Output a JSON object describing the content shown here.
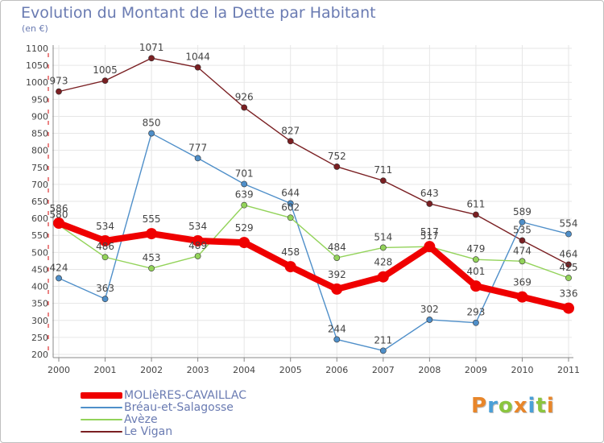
{
  "header": {
    "title": "Evolution du Montant de la Dette par Habitant",
    "unit": "(en €)"
  },
  "logo": {
    "letters": [
      "P",
      "r",
      "o",
      "x",
      "i",
      "t",
      "i"
    ],
    "colors": [
      "#e8862a",
      "#4aa0d8",
      "#8bc53f",
      "#e8862a",
      "#4aa0d8",
      "#8bc53f",
      "#e8862a"
    ]
  },
  "chart_data": {
    "type": "line",
    "title": "Evolution du Montant de la Dette par Habitant",
    "ylabel": "(en €)",
    "xlabel": "",
    "x": [
      "2000",
      "2001",
      "2002",
      "2003",
      "2004",
      "2005",
      "2006",
      "2007",
      "2008",
      "2009",
      "2010",
      "2011"
    ],
    "y_ticks": [
      200,
      250,
      300,
      350,
      400,
      450,
      500,
      550,
      600,
      650,
      700,
      750,
      800,
      850,
      900,
      950,
      1000,
      1050,
      1100
    ],
    "ylim": [
      200,
      1100
    ],
    "grid": true,
    "legend_position": "bottom-left",
    "series": [
      {
        "name": "Le Vigan",
        "color": "#7a1f22",
        "values": [
          973,
          1005,
          1071,
          1044,
          926,
          827,
          752,
          711,
          643,
          611,
          535,
          464
        ]
      },
      {
        "name": "Bréau-et-Salagosse",
        "color": "#4f8fc9",
        "values": [
          424,
          363,
          850,
          777,
          701,
          644,
          244,
          211,
          302,
          293,
          589,
          554
        ]
      },
      {
        "name": "Avèze",
        "color": "#93d35a",
        "values": [
          580,
          486,
          453,
          489,
          639,
          602,
          484,
          514,
          517,
          479,
          474,
          425
        ]
      },
      {
        "name": "MOLIèRES-CAVAILLAC",
        "color": "#ef0000",
        "values": [
          586,
          534,
          555,
          534,
          529,
          458,
          392,
          428,
          517,
          401,
          369,
          336
        ],
        "emphasized": true
      }
    ]
  }
}
